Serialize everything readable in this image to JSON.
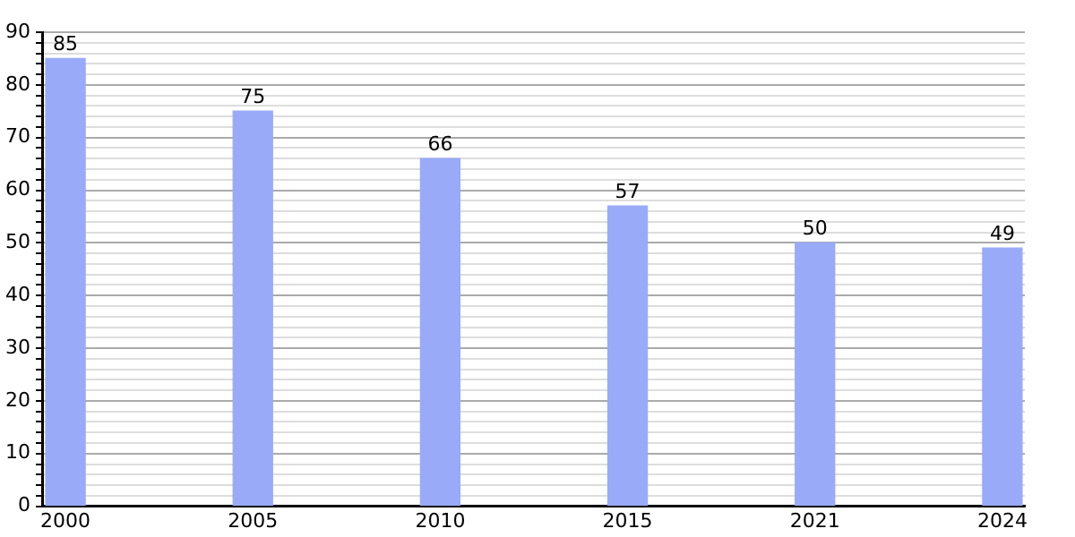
{
  "chart_data": {
    "type": "bar",
    "categories": [
      "2000",
      "2005",
      "2010",
      "2015",
      "2021",
      "2024"
    ],
    "values": [
      85,
      75,
      66,
      57,
      50,
      49
    ],
    "color": "#99aaf8",
    "data_labels": true,
    "grid": "y",
    "ylim": [
      0,
      90
    ],
    "yticks": [
      0,
      {
        "value": 2,
        "label": null
      },
      {
        "value": 4,
        "label": null
      },
      {
        "value": 6,
        "label": null
      },
      {
        "value": 8,
        "label": null
      },
      10,
      {
        "value": 12,
        "label": null
      },
      {
        "value": 14,
        "label": null
      },
      {
        "value": 16,
        "label": null
      },
      {
        "value": 18,
        "label": null
      },
      20,
      {
        "value": 22,
        "label": null
      },
      {
        "value": 24,
        "label": null
      },
      {
        "value": 26,
        "label": null
      },
      {
        "value": 28,
        "label": null
      },
      30,
      {
        "value": 32,
        "label": null
      },
      {
        "value": 34,
        "label": null
      },
      {
        "value": 36,
        "label": null
      },
      {
        "value": 38,
        "label": null
      },
      40,
      {
        "value": 42,
        "label": null
      },
      {
        "value": 44,
        "label": null
      },
      {
        "value": 46,
        "label": null
      },
      {
        "value": 48,
        "label": null
      },
      50,
      {
        "value": 52,
        "label": null
      },
      {
        "value": 54,
        "label": null
      },
      {
        "value": 56,
        "label": null
      },
      {
        "value": 58,
        "label": null
      },
      60,
      {
        "value": 62,
        "label": null
      },
      {
        "value": 64,
        "label": null
      },
      {
        "value": 66,
        "label": null
      },
      {
        "value": 68,
        "label": null
      },
      70,
      {
        "value": 72,
        "label": null
      },
      {
        "value": 74,
        "label": null
      },
      {
        "value": 76,
        "label": null
      },
      {
        "value": 78,
        "label": null
      },
      80,
      {
        "value": 82,
        "label": null
      },
      {
        "value": 84,
        "label": null
      },
      {
        "value": 86,
        "label": null
      },
      {
        "value": 88,
        "label": null
      },
      90
    ]
  }
}
